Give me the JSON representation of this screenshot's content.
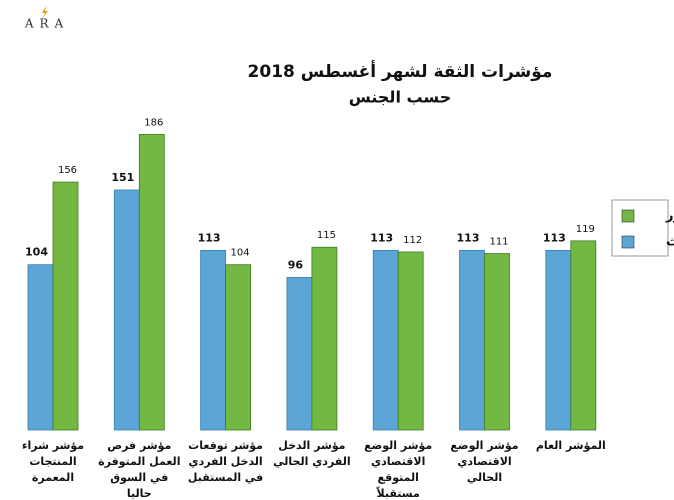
{
  "logo": "ARA",
  "chart_data": {
    "type": "bar",
    "title": "مؤشرات الثقة لشهر أغسطس 2018",
    "subtitle": "حسب الجنس",
    "categories": [
      "مؤشر شراء المنتجات المعمرة",
      "مؤشر فرص العمل المتوفرة في السوق حاليا",
      "مؤشر توقعات الدخل الفردي في المستقبل",
      "مؤشر الدخل الفردي الحالي",
      "مؤشر الوضع الاقتصادي المتوقع مستقبلاً",
      "مؤشر الوضع الاقتصادي الحالي",
      "المؤشر العام"
    ],
    "series": [
      {
        "name": "إناث",
        "color": "#5ba5d7",
        "values": [
          104,
          151,
          113,
          96,
          113,
          113,
          113
        ]
      },
      {
        "name": "ذكور",
        "color": "#74b844",
        "values": [
          156,
          186,
          104,
          115,
          112,
          111,
          119
        ]
      }
    ],
    "ylim": [
      0,
      190
    ]
  }
}
